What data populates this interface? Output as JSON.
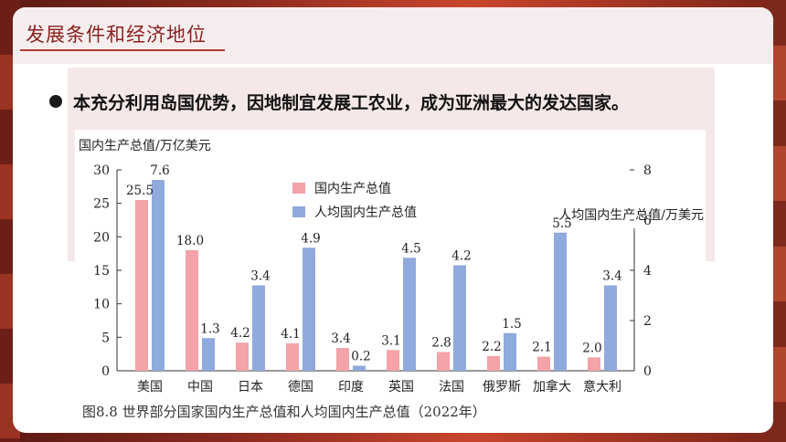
{
  "header": {
    "section_title": "发展条件和经济地位"
  },
  "bullet": {
    "text": "本充分利用岛国优势，因地制宜发展工农业，成为亚洲最大的发达国家。"
  },
  "colors": {
    "gdp_bar": "#f4a3a8",
    "per_capita_bar": "#8faadc",
    "title_red": "#8b1f1f"
  },
  "chart_data": {
    "type": "bar",
    "caption": "图8.8 世界部分国家国内生产总值和人均国内生产总值（2022年）",
    "categories": [
      "美国",
      "中国",
      "日本",
      "德国",
      "印度",
      "英国",
      "法国",
      "俄罗斯",
      "加拿大",
      "意大利"
    ],
    "left_axis": {
      "label": "国内生产总值/万亿美元",
      "ylim": [
        0,
        30
      ],
      "ticks": [
        0,
        5,
        10,
        15,
        20,
        25,
        30
      ]
    },
    "right_axis": {
      "label": "人均国内生产总值/万美元",
      "ylim": [
        0,
        8
      ],
      "ticks": [
        0,
        2,
        4,
        6,
        8
      ]
    },
    "series": [
      {
        "name": "国内生产总值",
        "axis": "left",
        "values": [
          25.5,
          18.0,
          4.2,
          4.1,
          3.4,
          3.1,
          2.8,
          2.2,
          2.1,
          2.0
        ],
        "labels": [
          "25.5",
          "18.0",
          "4.2",
          "4.1",
          "3.4",
          "3.1",
          "2.8",
          "2.2",
          "2.1",
          "2.0"
        ]
      },
      {
        "name": "人均国内生产总值",
        "axis": "right",
        "values": [
          7.6,
          1.3,
          3.4,
          4.9,
          0.2,
          4.5,
          4.2,
          1.5,
          5.5,
          3.4
        ],
        "labels": [
          "7.6",
          "1.3",
          "3.4",
          "4.9",
          "0.2",
          "4.5",
          "4.2",
          "1.5",
          "5.5",
          "3.4"
        ]
      }
    ],
    "legend_position": "top-center",
    "grid": false
  }
}
